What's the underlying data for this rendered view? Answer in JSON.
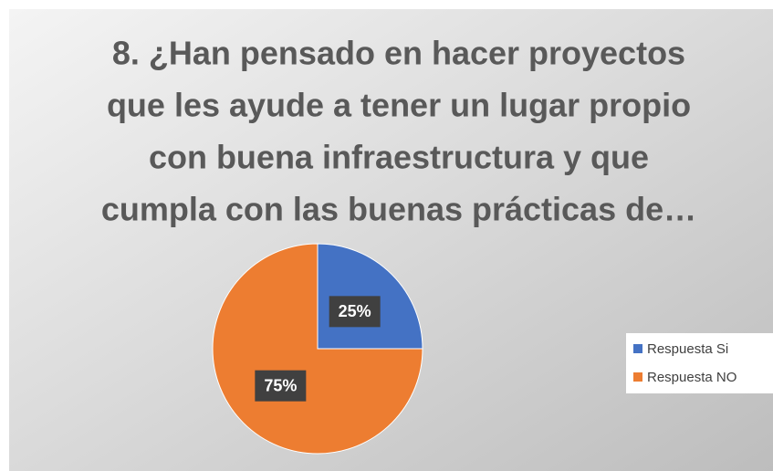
{
  "chart_data": {
    "type": "pie",
    "title": [
      "8. ¿Han pensado en hacer proyectos",
      "que les ayude a tener un lugar propio",
      "con buena infraestructura y que",
      "cumpla con las buenas prácticas de…"
    ],
    "categories": [
      "Respuesta Si",
      "Respuesta NO"
    ],
    "values": [
      25,
      75
    ],
    "value_labels": [
      "25%",
      "75%"
    ],
    "colors": [
      "#4472c4",
      "#ed7d31"
    ],
    "legend": "right"
  }
}
